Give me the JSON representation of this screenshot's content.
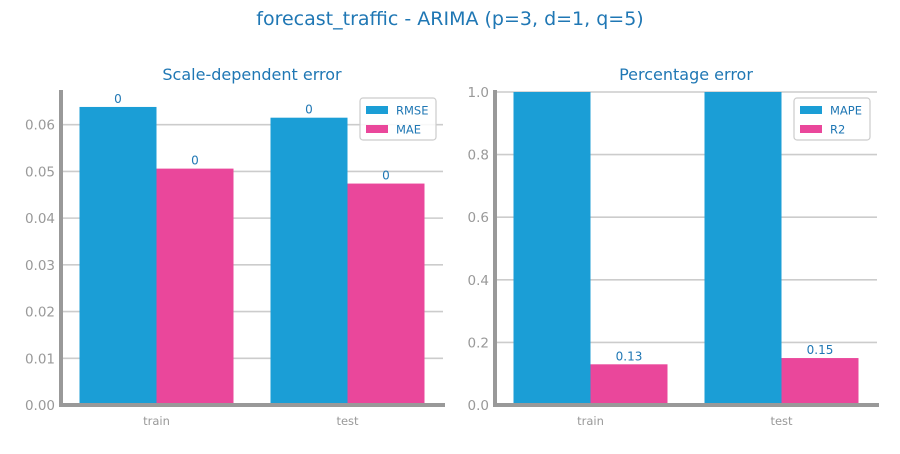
{
  "figure": {
    "suptitle": "forecast_traffic - ARIMA (p=3, d=1, q=5)",
    "colors": {
      "title": "#1f77b4",
      "tick": "#999999",
      "grid": "#cccccc",
      "spine": "#999999",
      "series_a": "#1b9ed6",
      "series_b": "#ea479b",
      "label": "#1f77b4"
    }
  },
  "chart_data": [
    {
      "type": "bar",
      "title": "Scale-dependent error",
      "categories": [
        "train",
        "test"
      ],
      "series": [
        {
          "name": "RMSE",
          "values": [
            0.0638,
            0.0615
          ],
          "labels": [
            "0",
            "0"
          ]
        },
        {
          "name": "MAE",
          "values": [
            0.0506,
            0.0474
          ],
          "labels": [
            "0",
            "0"
          ]
        }
      ],
      "ylim": [
        0,
        0.067
      ],
      "yticks": [
        "0.00",
        "0.01",
        "0.02",
        "0.03",
        "0.04",
        "0.05",
        "0.06"
      ],
      "ytick_values": [
        0,
        0.01,
        0.02,
        0.03,
        0.04,
        0.05,
        0.06
      ],
      "grid": true,
      "legend": "top-right"
    },
    {
      "type": "bar",
      "title": "Percentage error",
      "categories": [
        "train",
        "test"
      ],
      "series": [
        {
          "name": "MAPE",
          "values": [
            1.0,
            1.0
          ],
          "labels": [
            "",
            ""
          ]
        },
        {
          "name": "R2",
          "values": [
            0.13,
            0.15
          ],
          "labels": [
            "0.13",
            "0.15"
          ]
        }
      ],
      "ylim": [
        0,
        1.0
      ],
      "yticks": [
        "0.0",
        "0.2",
        "0.4",
        "0.6",
        "0.8",
        "1.0"
      ],
      "ytick_values": [
        0,
        0.2,
        0.4,
        0.6,
        0.8,
        1.0
      ],
      "grid": true,
      "legend": "top-right"
    }
  ]
}
